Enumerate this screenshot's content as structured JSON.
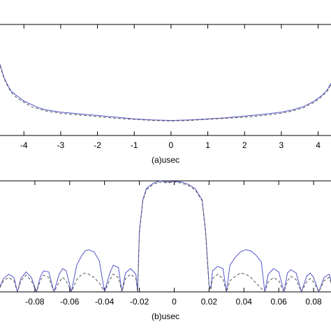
{
  "chart_data": [
    {
      "type": "line",
      "panel_label": "(a)",
      "xlabel": "usec",
      "xlim": [
        -4.65,
        4.35
      ],
      "x_ticks": [
        -4,
        -3,
        -2,
        -1,
        0,
        1,
        2,
        3,
        4
      ],
      "tick_labels": [
        "-4",
        "-3",
        "-2",
        "-1",
        "0",
        "1",
        "2",
        "3",
        "4"
      ],
      "ylim": [
        0,
        1
      ],
      "grid": false,
      "series": [
        {
          "style": "solid",
          "color": "#5555cc",
          "x": [
            -4.65,
            -4.55,
            -4.45,
            -4.35,
            -4.2,
            -4.0,
            -3.8,
            -3.6,
            -3.4,
            -3.2,
            -3.0,
            -2.5,
            -2.0,
            -1.5,
            -1.0,
            -0.5,
            0.0,
            0.5,
            1.0,
            1.5,
            2.0,
            2.5,
            3.0,
            3.3,
            3.6,
            3.9,
            4.1,
            4.25,
            4.35
          ],
          "y": [
            0.64,
            0.53,
            0.46,
            0.4,
            0.36,
            0.31,
            0.28,
            0.25,
            0.23,
            0.22,
            0.21,
            0.195,
            0.18,
            0.165,
            0.15,
            0.14,
            0.135,
            0.14,
            0.15,
            0.16,
            0.175,
            0.19,
            0.21,
            0.23,
            0.26,
            0.31,
            0.36,
            0.41,
            0.47
          ]
        },
        {
          "style": "dashed",
          "color": "#555555",
          "x": [
            -4.65,
            -4.55,
            -4.45,
            -4.35,
            -4.2,
            -4.0,
            -3.8,
            -3.6,
            -3.4,
            -3.2,
            -3.0,
            -2.5,
            -2.0,
            -1.5,
            -1.0,
            -0.5,
            0.0,
            0.5,
            1.0,
            1.5,
            2.0,
            2.5,
            3.0,
            3.3,
            3.6,
            3.9,
            4.1,
            4.25,
            4.35
          ],
          "y": [
            0.63,
            0.52,
            0.45,
            0.39,
            0.34,
            0.3,
            0.26,
            0.24,
            0.22,
            0.21,
            0.2,
            0.185,
            0.17,
            0.155,
            0.145,
            0.135,
            0.13,
            0.135,
            0.145,
            0.155,
            0.165,
            0.18,
            0.2,
            0.22,
            0.25,
            0.3,
            0.35,
            0.4,
            0.46
          ]
        }
      ]
    },
    {
      "type": "line",
      "panel_label": "(b)",
      "xlabel": "usec",
      "xlim": [
        -0.1,
        0.09
      ],
      "x_ticks": [
        -0.08,
        -0.06,
        -0.04,
        -0.02,
        0,
        0.02,
        0.04,
        0.06,
        0.08
      ],
      "tick_labels": [
        "-0.08",
        "-0.06",
        "-0.04",
        "-0.02",
        "0",
        "0.02",
        "0.04",
        "0.06",
        "0.08"
      ],
      "ylim": [
        0,
        1
      ],
      "grid": false,
      "series": [
        {
          "style": "solid",
          "color": "#5555cc",
          "x": [
            -0.1,
            -0.098,
            -0.095,
            -0.092,
            -0.09,
            -0.088,
            -0.085,
            -0.082,
            -0.079,
            -0.077,
            -0.075,
            -0.072,
            -0.069,
            -0.066,
            -0.064,
            -0.062,
            -0.059,
            -0.056,
            -0.053,
            -0.051,
            -0.049,
            -0.046,
            -0.043,
            -0.04,
            -0.037,
            -0.035,
            -0.032,
            -0.03,
            -0.028,
            -0.025,
            -0.022,
            -0.021,
            -0.02,
            -0.018,
            -0.016,
            -0.012,
            -0.008,
            -0.004,
            0.0,
            0.004,
            0.008,
            0.012,
            0.016,
            0.018,
            0.02,
            0.021,
            0.022,
            0.025,
            0.028,
            0.03,
            0.032,
            0.035,
            0.038,
            0.041,
            0.044,
            0.047,
            0.05,
            0.052,
            0.054,
            0.057,
            0.06,
            0.063,
            0.065,
            0.067,
            0.07,
            0.073,
            0.076,
            0.078,
            0.08,
            0.083,
            0.086,
            0.089,
            0.09
          ],
          "y": [
            0.05,
            0.12,
            0.16,
            0.13,
            0.0,
            0.12,
            0.18,
            0.13,
            0.0,
            0.13,
            0.19,
            0.18,
            0.0,
            0.16,
            0.21,
            0.19,
            0.0,
            0.24,
            0.33,
            0.37,
            0.38,
            0.36,
            0.28,
            0.0,
            0.17,
            0.24,
            0.22,
            0.0,
            0.17,
            0.21,
            0.16,
            0.0,
            0.55,
            0.83,
            0.93,
            0.98,
            1.0,
            0.99,
            0.995,
            0.99,
            0.97,
            0.93,
            0.83,
            0.55,
            0.06,
            0.03,
            0.19,
            0.23,
            0.21,
            0.0,
            0.24,
            0.31,
            0.36,
            0.38,
            0.37,
            0.33,
            0.27,
            0.0,
            0.16,
            0.21,
            0.18,
            0.0,
            0.17,
            0.2,
            0.17,
            0.0,
            0.14,
            0.17,
            0.13,
            0.0,
            0.13,
            0.16,
            0.1
          ]
        },
        {
          "style": "dashed",
          "color": "#555555",
          "x": [
            -0.1,
            -0.098,
            -0.095,
            -0.092,
            -0.09,
            -0.088,
            -0.085,
            -0.082,
            -0.079,
            -0.077,
            -0.075,
            -0.072,
            -0.069,
            -0.066,
            -0.064,
            -0.062,
            -0.059,
            -0.056,
            -0.053,
            -0.051,
            -0.049,
            -0.046,
            -0.043,
            -0.04,
            -0.037,
            -0.035,
            -0.032,
            -0.03,
            -0.028,
            -0.025,
            -0.022,
            -0.021,
            -0.02,
            -0.018,
            -0.016,
            -0.012,
            -0.008,
            -0.004,
            0.0,
            0.004,
            0.008,
            0.012,
            0.016,
            0.018,
            0.02,
            0.021,
            0.022,
            0.025,
            0.028,
            0.03,
            0.032,
            0.035,
            0.038,
            0.041,
            0.044,
            0.047,
            0.05,
            0.052,
            0.054,
            0.057,
            0.06,
            0.063,
            0.065,
            0.067,
            0.07,
            0.073,
            0.076,
            0.078,
            0.08,
            0.083,
            0.086,
            0.089,
            0.09
          ],
          "y": [
            0.04,
            0.1,
            0.13,
            0.1,
            0.0,
            0.1,
            0.15,
            0.1,
            0.0,
            0.1,
            0.15,
            0.13,
            0.0,
            0.09,
            0.13,
            0.1,
            0.0,
            0.11,
            0.16,
            0.17,
            0.16,
            0.13,
            0.08,
            0.0,
            0.11,
            0.16,
            0.13,
            0.0,
            0.12,
            0.16,
            0.12,
            0.0,
            0.53,
            0.82,
            0.92,
            0.97,
            0.99,
            0.98,
            0.99,
            0.98,
            0.96,
            0.92,
            0.82,
            0.53,
            0.05,
            0.02,
            0.12,
            0.16,
            0.12,
            0.0,
            0.1,
            0.14,
            0.17,
            0.16,
            0.13,
            0.08,
            0.03,
            0.0,
            0.09,
            0.13,
            0.1,
            0.0,
            0.1,
            0.14,
            0.11,
            0.0,
            0.09,
            0.12,
            0.09,
            0.0,
            0.1,
            0.13,
            0.08
          ]
        }
      ]
    }
  ]
}
